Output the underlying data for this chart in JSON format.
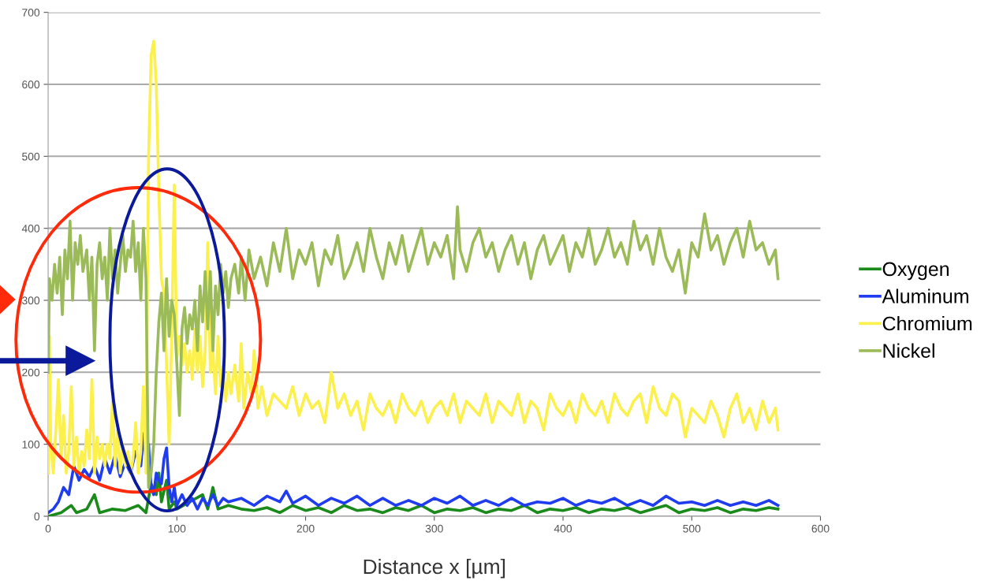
{
  "chart_data": {
    "type": "line",
    "xlabel": "Distance x [µm]",
    "xlim": [
      0,
      600
    ],
    "xticks": [
      0,
      100,
      200,
      300,
      400,
      500,
      600
    ],
    "ylim": [
      0,
      700
    ],
    "yticks": [
      0,
      100,
      200,
      300,
      400,
      500,
      600,
      700
    ],
    "grid": "y",
    "legend": "right",
    "marker": "none",
    "line_style": "solid",
    "series": [
      {
        "name": "Oxygen",
        "color": "#1a8a1a",
        "x": [
          0,
          10,
          18,
          22,
          30,
          36,
          40,
          50,
          60,
          70,
          76,
          80,
          84,
          86,
          88,
          92,
          94,
          98,
          100,
          110,
          120,
          124,
          128,
          132,
          140,
          150,
          160,
          170,
          180,
          190,
          200,
          210,
          220,
          230,
          240,
          250,
          260,
          270,
          280,
          290,
          300,
          310,
          320,
          330,
          340,
          350,
          360,
          370,
          380,
          390,
          400,
          410,
          420,
          430,
          440,
          450,
          460,
          470,
          480,
          490,
          500,
          510,
          520,
          530,
          540,
          550,
          560,
          567
        ],
        "values": [
          0,
          5,
          15,
          5,
          10,
          30,
          5,
          10,
          8,
          15,
          5,
          45,
          30,
          60,
          20,
          50,
          10,
          20,
          10,
          20,
          30,
          10,
          40,
          10,
          15,
          10,
          8,
          12,
          5,
          15,
          8,
          12,
          5,
          15,
          8,
          10,
          5,
          12,
          8,
          15,
          5,
          10,
          8,
          12,
          5,
          10,
          8,
          15,
          5,
          10,
          8,
          12,
          5,
          10,
          8,
          12,
          5,
          10,
          15,
          5,
          10,
          8,
          12,
          5,
          10,
          8,
          12,
          10
        ]
      },
      {
        "name": "Aluminum",
        "color": "#1f3cf0",
        "x": [
          0,
          4,
          8,
          12,
          16,
          20,
          24,
          28,
          32,
          36,
          40,
          44,
          48,
          52,
          56,
          60,
          64,
          68,
          72,
          74,
          76,
          78,
          80,
          82,
          84,
          86,
          88,
          90,
          92,
          94,
          96,
          98,
          100,
          104,
          108,
          112,
          116,
          120,
          124,
          128,
          132,
          136,
          140,
          150,
          160,
          170,
          180,
          185,
          190,
          200,
          210,
          220,
          230,
          240,
          250,
          260,
          270,
          280,
          290,
          300,
          310,
          320,
          330,
          340,
          350,
          360,
          370,
          380,
          390,
          400,
          410,
          420,
          430,
          440,
          450,
          460,
          470,
          480,
          490,
          500,
          510,
          520,
          530,
          540,
          550,
          560,
          567
        ],
        "values": [
          5,
          10,
          20,
          40,
          30,
          70,
          50,
          65,
          55,
          70,
          50,
          80,
          60,
          85,
          55,
          75,
          60,
          90,
          70,
          115,
          80,
          100,
          40,
          30,
          60,
          50,
          45,
          80,
          95,
          40,
          20,
          40,
          15,
          30,
          15,
          25,
          10,
          25,
          15,
          30,
          15,
          25,
          20,
          25,
          15,
          28,
          20,
          35,
          18,
          28,
          15,
          25,
          18,
          28,
          15,
          25,
          15,
          22,
          15,
          25,
          18,
          28,
          15,
          22,
          15,
          25,
          15,
          20,
          18,
          25,
          15,
          22,
          18,
          25,
          15,
          22,
          15,
          28,
          18,
          20,
          15,
          22,
          15,
          20,
          15,
          22,
          15
        ]
      },
      {
        "name": "Chromium",
        "color": "#fbf04c",
        "x": [
          0,
          1,
          2,
          4,
          6,
          8,
          10,
          12,
          14,
          16,
          18,
          20,
          22,
          24,
          26,
          28,
          30,
          32,
          34,
          36,
          38,
          40,
          42,
          44,
          46,
          48,
          50,
          52,
          54,
          56,
          58,
          60,
          62,
          64,
          66,
          68,
          70,
          72,
          74,
          76,
          78,
          80,
          82,
          84,
          86,
          88,
          90,
          92,
          94,
          96,
          98,
          100,
          102,
          104,
          106,
          108,
          110,
          112,
          114,
          116,
          118,
          120,
          122,
          124,
          126,
          128,
          130,
          132,
          134,
          136,
          138,
          140,
          142,
          145,
          148,
          150,
          152,
          155,
          158,
          160,
          163,
          166,
          170,
          175,
          180,
          185,
          190,
          195,
          200,
          205,
          210,
          215,
          220,
          225,
          230,
          235,
          240,
          245,
          250,
          255,
          260,
          265,
          270,
          275,
          280,
          285,
          290,
          295,
          300,
          305,
          310,
          315,
          320,
          325,
          330,
          335,
          340,
          345,
          350,
          355,
          360,
          365,
          370,
          375,
          380,
          385,
          390,
          395,
          400,
          405,
          410,
          415,
          420,
          425,
          430,
          435,
          440,
          445,
          450,
          455,
          460,
          465,
          470,
          475,
          480,
          485,
          490,
          495,
          500,
          505,
          510,
          515,
          520,
          525,
          530,
          535,
          540,
          545,
          550,
          555,
          560,
          565,
          567
        ],
        "values": [
          60,
          250,
          100,
          60,
          120,
          190,
          80,
          140,
          60,
          90,
          180,
          70,
          110,
          60,
          90,
          70,
          120,
          80,
          190,
          60,
          110,
          80,
          100,
          70,
          100,
          80,
          160,
          70,
          120,
          60,
          100,
          70,
          90,
          60,
          80,
          130,
          60,
          90,
          180,
          60,
          500,
          640,
          660,
          600,
          450,
          330,
          310,
          210,
          100,
          250,
          460,
          220,
          250,
          210,
          240,
          200,
          230,
          190,
          260,
          200,
          250,
          180,
          230,
          380,
          200,
          230,
          170,
          250,
          180,
          210,
          160,
          200,
          170,
          210,
          160,
          240,
          150,
          200,
          170,
          230,
          150,
          180,
          140,
          170,
          160,
          150,
          180,
          140,
          170,
          150,
          160,
          130,
          200,
          150,
          170,
          140,
          160,
          120,
          170,
          150,
          140,
          160,
          130,
          170,
          150,
          140,
          160,
          130,
          150,
          160,
          140,
          170,
          130,
          160,
          150,
          140,
          170,
          130,
          160,
          150,
          140,
          170,
          130,
          160,
          150,
          120,
          170,
          150,
          140,
          160,
          130,
          170,
          150,
          140,
          160,
          130,
          170,
          150,
          140,
          160,
          170,
          130,
          180,
          150,
          140,
          170,
          160,
          110,
          150,
          140,
          130,
          160,
          140,
          110,
          150,
          170,
          130,
          150,
          120,
          160,
          130,
          150,
          120
        ]
      },
      {
        "name": "Nickel",
        "color": "#9bbb59",
        "x": [
          0,
          1,
          3,
          5,
          7,
          9,
          11,
          13,
          15,
          17,
          19,
          21,
          23,
          25,
          27,
          30,
          32,
          34,
          36,
          38,
          40,
          42,
          44,
          46,
          48,
          50,
          52,
          54,
          56,
          58,
          60,
          62,
          64,
          66,
          68,
          70,
          72,
          74,
          76,
          78,
          80,
          82,
          84,
          86,
          88,
          90,
          92,
          94,
          96,
          98,
          100,
          102,
          104,
          106,
          108,
          110,
          112,
          114,
          116,
          118,
          120,
          122,
          124,
          126,
          128,
          130,
          132,
          134,
          136,
          138,
          140,
          142,
          145,
          148,
          150,
          153,
          156,
          160,
          165,
          170,
          175,
          180,
          185,
          190,
          195,
          200,
          205,
          210,
          215,
          220,
          225,
          230,
          235,
          240,
          245,
          250,
          255,
          260,
          265,
          270,
          275,
          280,
          285,
          290,
          295,
          300,
          305,
          310,
          315,
          318,
          320,
          325,
          330,
          335,
          340,
          345,
          350,
          355,
          360,
          365,
          370,
          375,
          380,
          385,
          390,
          395,
          400,
          405,
          410,
          415,
          420,
          425,
          430,
          435,
          440,
          445,
          450,
          455,
          460,
          465,
          470,
          475,
          480,
          485,
          490,
          495,
          500,
          505,
          510,
          515,
          520,
          525,
          530,
          535,
          540,
          545,
          550,
          555,
          560,
          565,
          567
        ],
        "values": [
          200,
          330,
          300,
          350,
          310,
          360,
          280,
          370,
          330,
          410,
          300,
          380,
          350,
          390,
          340,
          370,
          300,
          360,
          230,
          350,
          380,
          330,
          360,
          300,
          400,
          330,
          370,
          310,
          350,
          390,
          340,
          370,
          360,
          410,
          340,
          380,
          300,
          400,
          330,
          40,
          60,
          100,
          200,
          270,
          310,
          230,
          330,
          250,
          300,
          280,
          210,
          140,
          260,
          290,
          240,
          280,
          260,
          300,
          230,
          320,
          270,
          340,
          260,
          340,
          230,
          320,
          280,
          350,
          310,
          340,
          290,
          330,
          350,
          310,
          360,
          300,
          370,
          330,
          360,
          320,
          380,
          340,
          400,
          330,
          370,
          350,
          380,
          320,
          370,
          350,
          390,
          330,
          350,
          380,
          340,
          400,
          360,
          330,
          380,
          350,
          390,
          340,
          370,
          400,
          350,
          380,
          360,
          390,
          330,
          430,
          370,
          340,
          380,
          400,
          360,
          380,
          340,
          370,
          390,
          350,
          380,
          330,
          370,
          390,
          350,
          370,
          390,
          340,
          380,
          360,
          400,
          350,
          370,
          400,
          360,
          380,
          350,
          410,
          370,
          390,
          350,
          400,
          360,
          340,
          370,
          310,
          380,
          360,
          420,
          370,
          390,
          350,
          380,
          400,
          360,
          410,
          370,
          380,
          350,
          370,
          330
        ]
      }
    ]
  }
}
